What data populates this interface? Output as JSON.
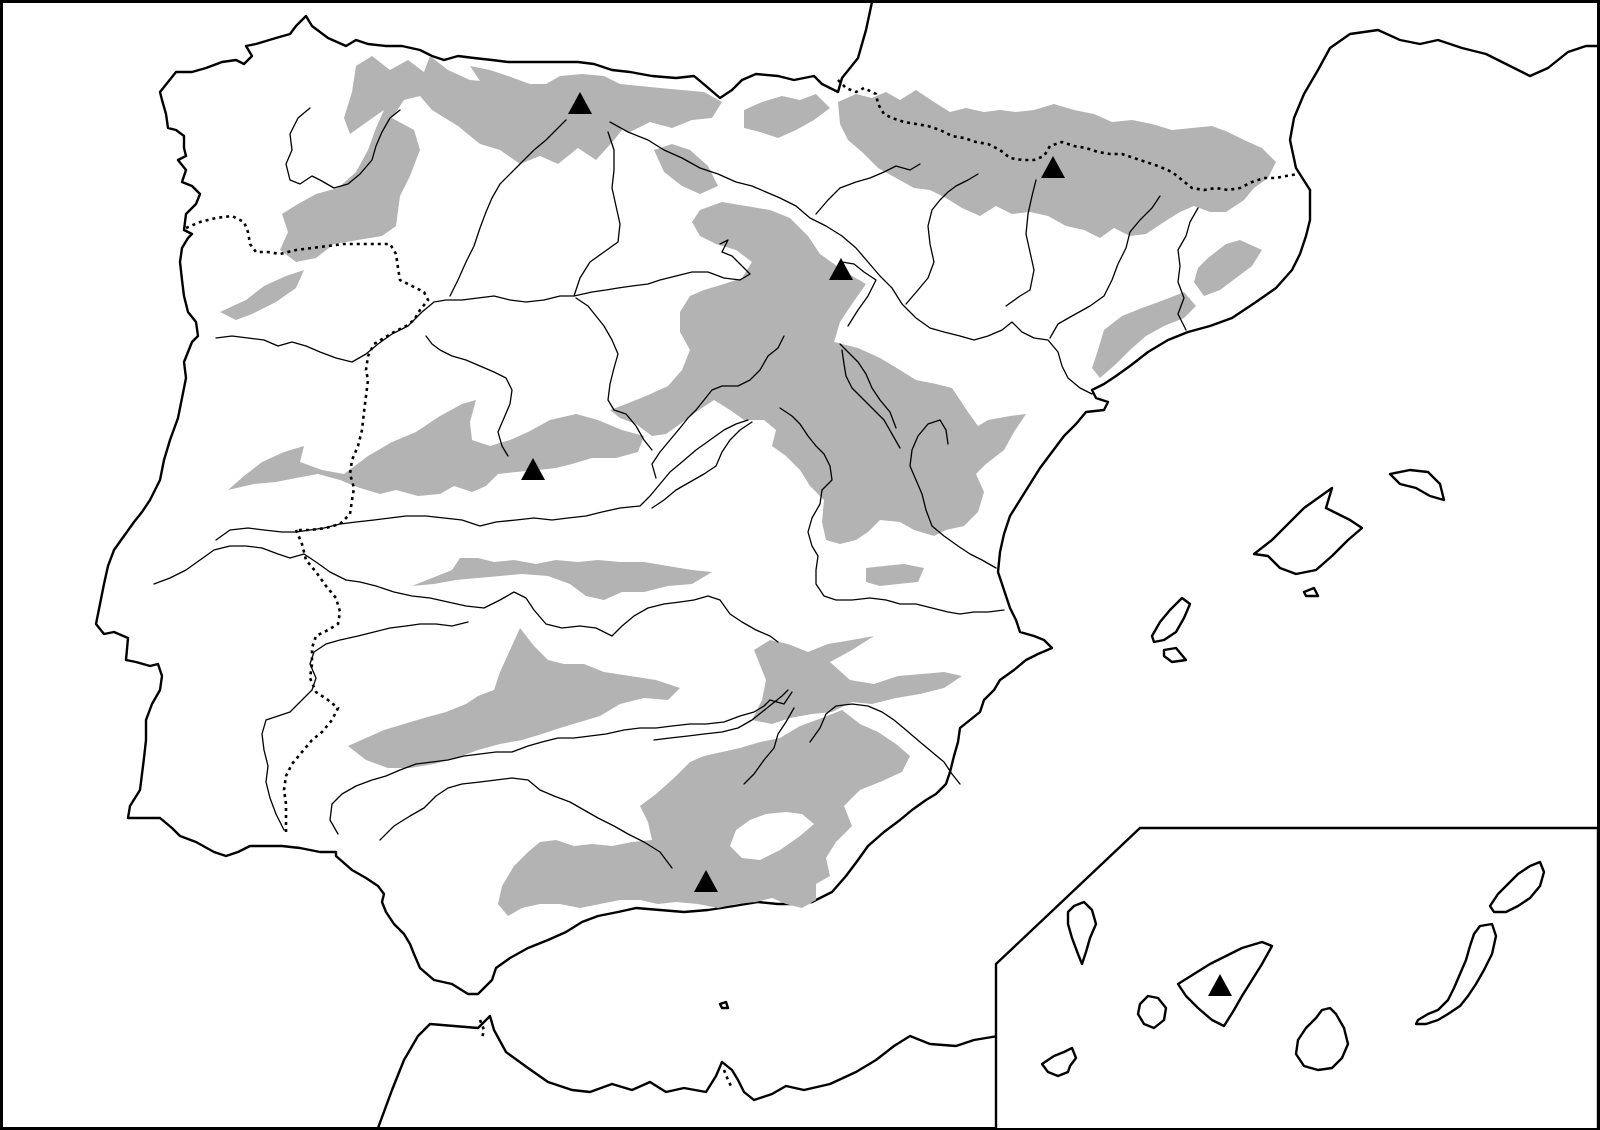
{
  "colors": {
    "relief": "#b3b3b3",
    "line": "#000000",
    "background": "#ffffff"
  },
  "legend_symbols": {
    "peak": "filled-triangle",
    "border": "dotted-line",
    "river": "thin-line",
    "mountains": "grey-fill"
  },
  "peaks": [
    {
      "name": "peak-cantabrian"
    },
    {
      "name": "peak-pyrenees"
    },
    {
      "name": "peak-iberian-north"
    },
    {
      "name": "peak-central-system"
    },
    {
      "name": "peak-penibetic"
    },
    {
      "name": "peak-canary-teide"
    }
  ],
  "inset": {
    "content": "canary-islands"
  }
}
